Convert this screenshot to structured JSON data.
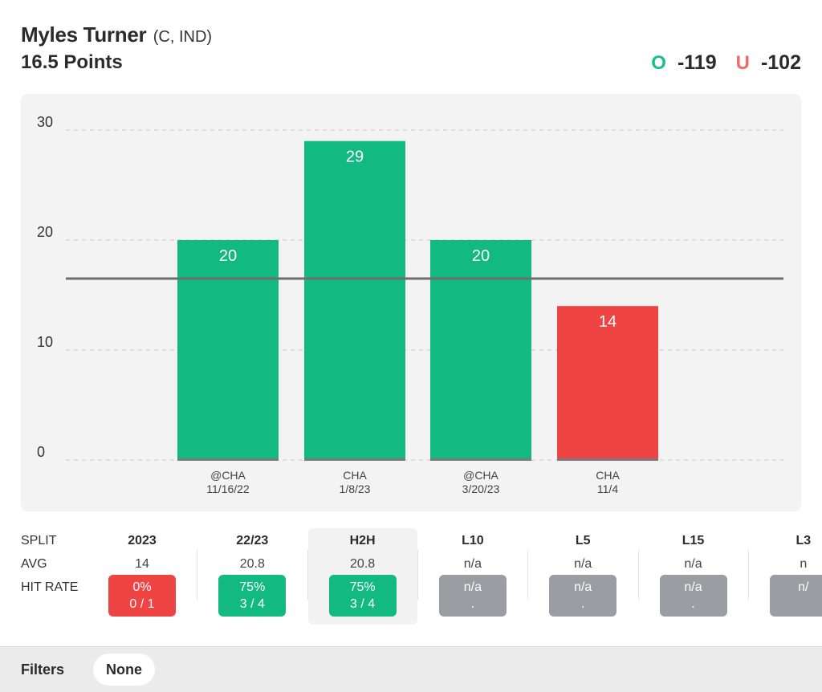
{
  "header": {
    "player_name": "Myles Turner",
    "player_meta": "(C, IND)",
    "prop_line": "16.5 Points",
    "over_letter": "O",
    "over_odds": "-119",
    "under_letter": "U",
    "under_odds": "-102"
  },
  "chart_data": {
    "type": "bar",
    "title": "",
    "xlabel": "",
    "ylabel": "",
    "ylim": [
      0,
      30
    ],
    "yticks": [
      0,
      10,
      20,
      30
    ],
    "line_value": 16.5,
    "categories": [
      {
        "opponent": "@CHA",
        "date": "11/16/22"
      },
      {
        "opponent": "CHA",
        "date": "1/8/23"
      },
      {
        "opponent": "@CHA",
        "date": "3/20/23"
      },
      {
        "opponent": "CHA",
        "date": "11/4"
      }
    ],
    "values": [
      20,
      29,
      20,
      14
    ],
    "value_labels": [
      "20",
      "29",
      "20",
      "14"
    ],
    "bar_colors": [
      "#12b981",
      "#12b981",
      "#12b981",
      "#ef4444"
    ],
    "grid": true
  },
  "splits": {
    "row_labels": {
      "split": "SPLIT",
      "avg": "AVG",
      "hit_rate": "HIT RATE"
    },
    "columns": [
      {
        "name": "2023",
        "avg": "14",
        "pct": "0%",
        "ratio": "0 / 1",
        "status": "red"
      },
      {
        "name": "22/23",
        "avg": "20.8",
        "pct": "75%",
        "ratio": "3 / 4",
        "status": "green"
      },
      {
        "name": "H2H",
        "avg": "20.8",
        "pct": "75%",
        "ratio": "3 / 4",
        "status": "green"
      },
      {
        "name": "L10",
        "avg": "n/a",
        "pct": "n/a",
        "ratio": ".",
        "status": "gray"
      },
      {
        "name": "L5",
        "avg": "n/a",
        "pct": "n/a",
        "ratio": ".",
        "status": "gray"
      },
      {
        "name": "L15",
        "avg": "n/a",
        "pct": "n/a",
        "ratio": ".",
        "status": "gray"
      },
      {
        "name": "L3",
        "avg": "n",
        "pct": "n/",
        "ratio": "",
        "status": "gray"
      }
    ],
    "highlighted_column": "H2H"
  },
  "filters": {
    "label": "Filters",
    "value": "None"
  },
  "colors": {
    "over": "#17c08b",
    "under": "#ef6b6b",
    "hit": "#12b981",
    "miss": "#ef4444",
    "na": "#9c9ca3"
  }
}
